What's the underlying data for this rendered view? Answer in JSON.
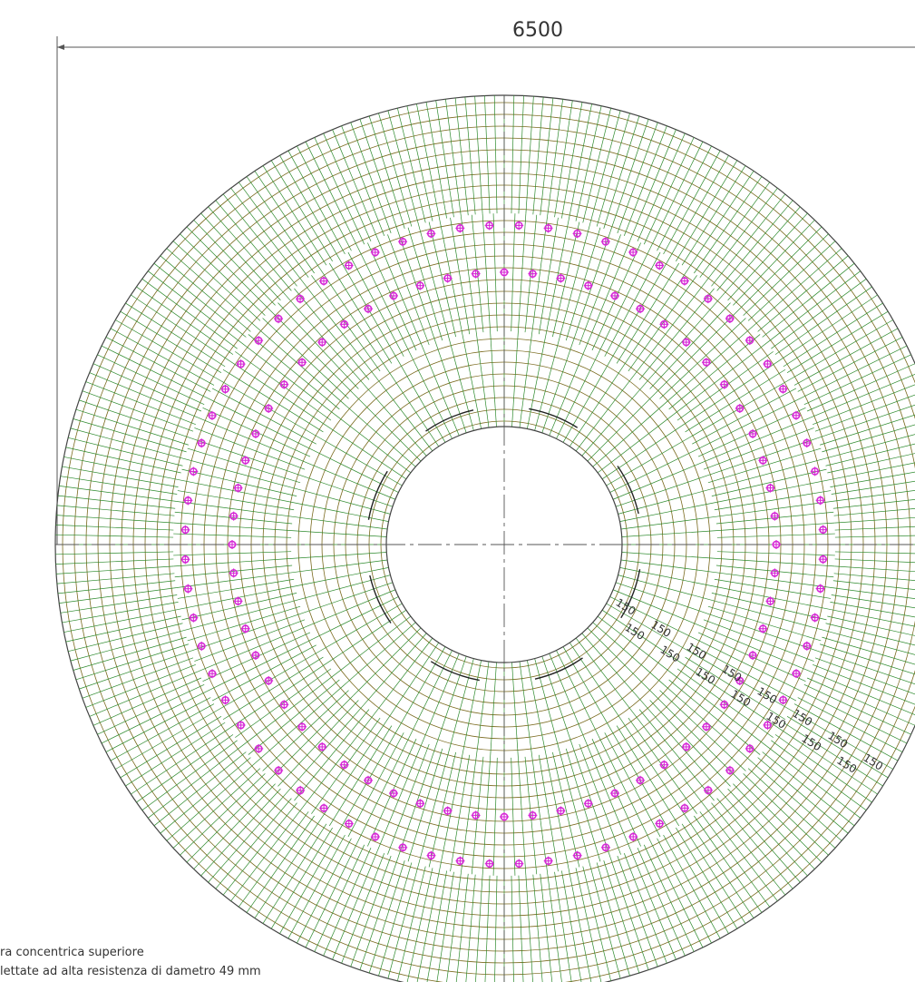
{
  "dimension_label": "6500",
  "ring_spacing_labels": [
    "150",
    "150",
    "150",
    "150",
    "150",
    "150",
    "150",
    "150",
    "150",
    "150",
    "150",
    "150",
    "150",
    "150",
    "150"
  ],
  "legend": {
    "line1": "ra concentrica superiore",
    "line2": "lettate ad alta resistenza di dametro 49 mm"
  },
  "colors": {
    "background": "#ffffff",
    "grid_radial": "#2d8a2d",
    "grid_ring": "#7a6a1e",
    "anchor_bolts": "#d62ad6",
    "linework": "#444444"
  }
}
